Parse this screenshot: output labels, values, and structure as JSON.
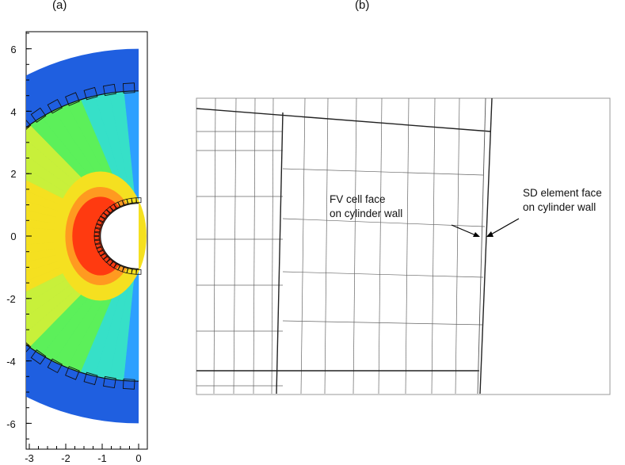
{
  "panels": {
    "a": {
      "label": "(a)"
    },
    "b": {
      "label": "(b)"
    }
  },
  "plot_a": {
    "y_ticks": [
      "6",
      "4",
      "2",
      "0",
      "-2",
      "-4",
      "-6"
    ],
    "x_ticks": [
      "-3",
      "-2",
      "-1",
      "0"
    ],
    "contour_colors": [
      "#1f5fe0",
      "#2da0ff",
      "#36e0c8",
      "#5cf05a",
      "#c8f03a",
      "#f5e020",
      "#ff9a20",
      "#ff3a10"
    ]
  },
  "plot_b": {
    "annotation_fv_line1": "FV cell face",
    "annotation_fv_line2": "on cylinder wall",
    "annotation_sd_line1": "SD element face",
    "annotation_sd_line2": "on cylinder wall"
  }
}
